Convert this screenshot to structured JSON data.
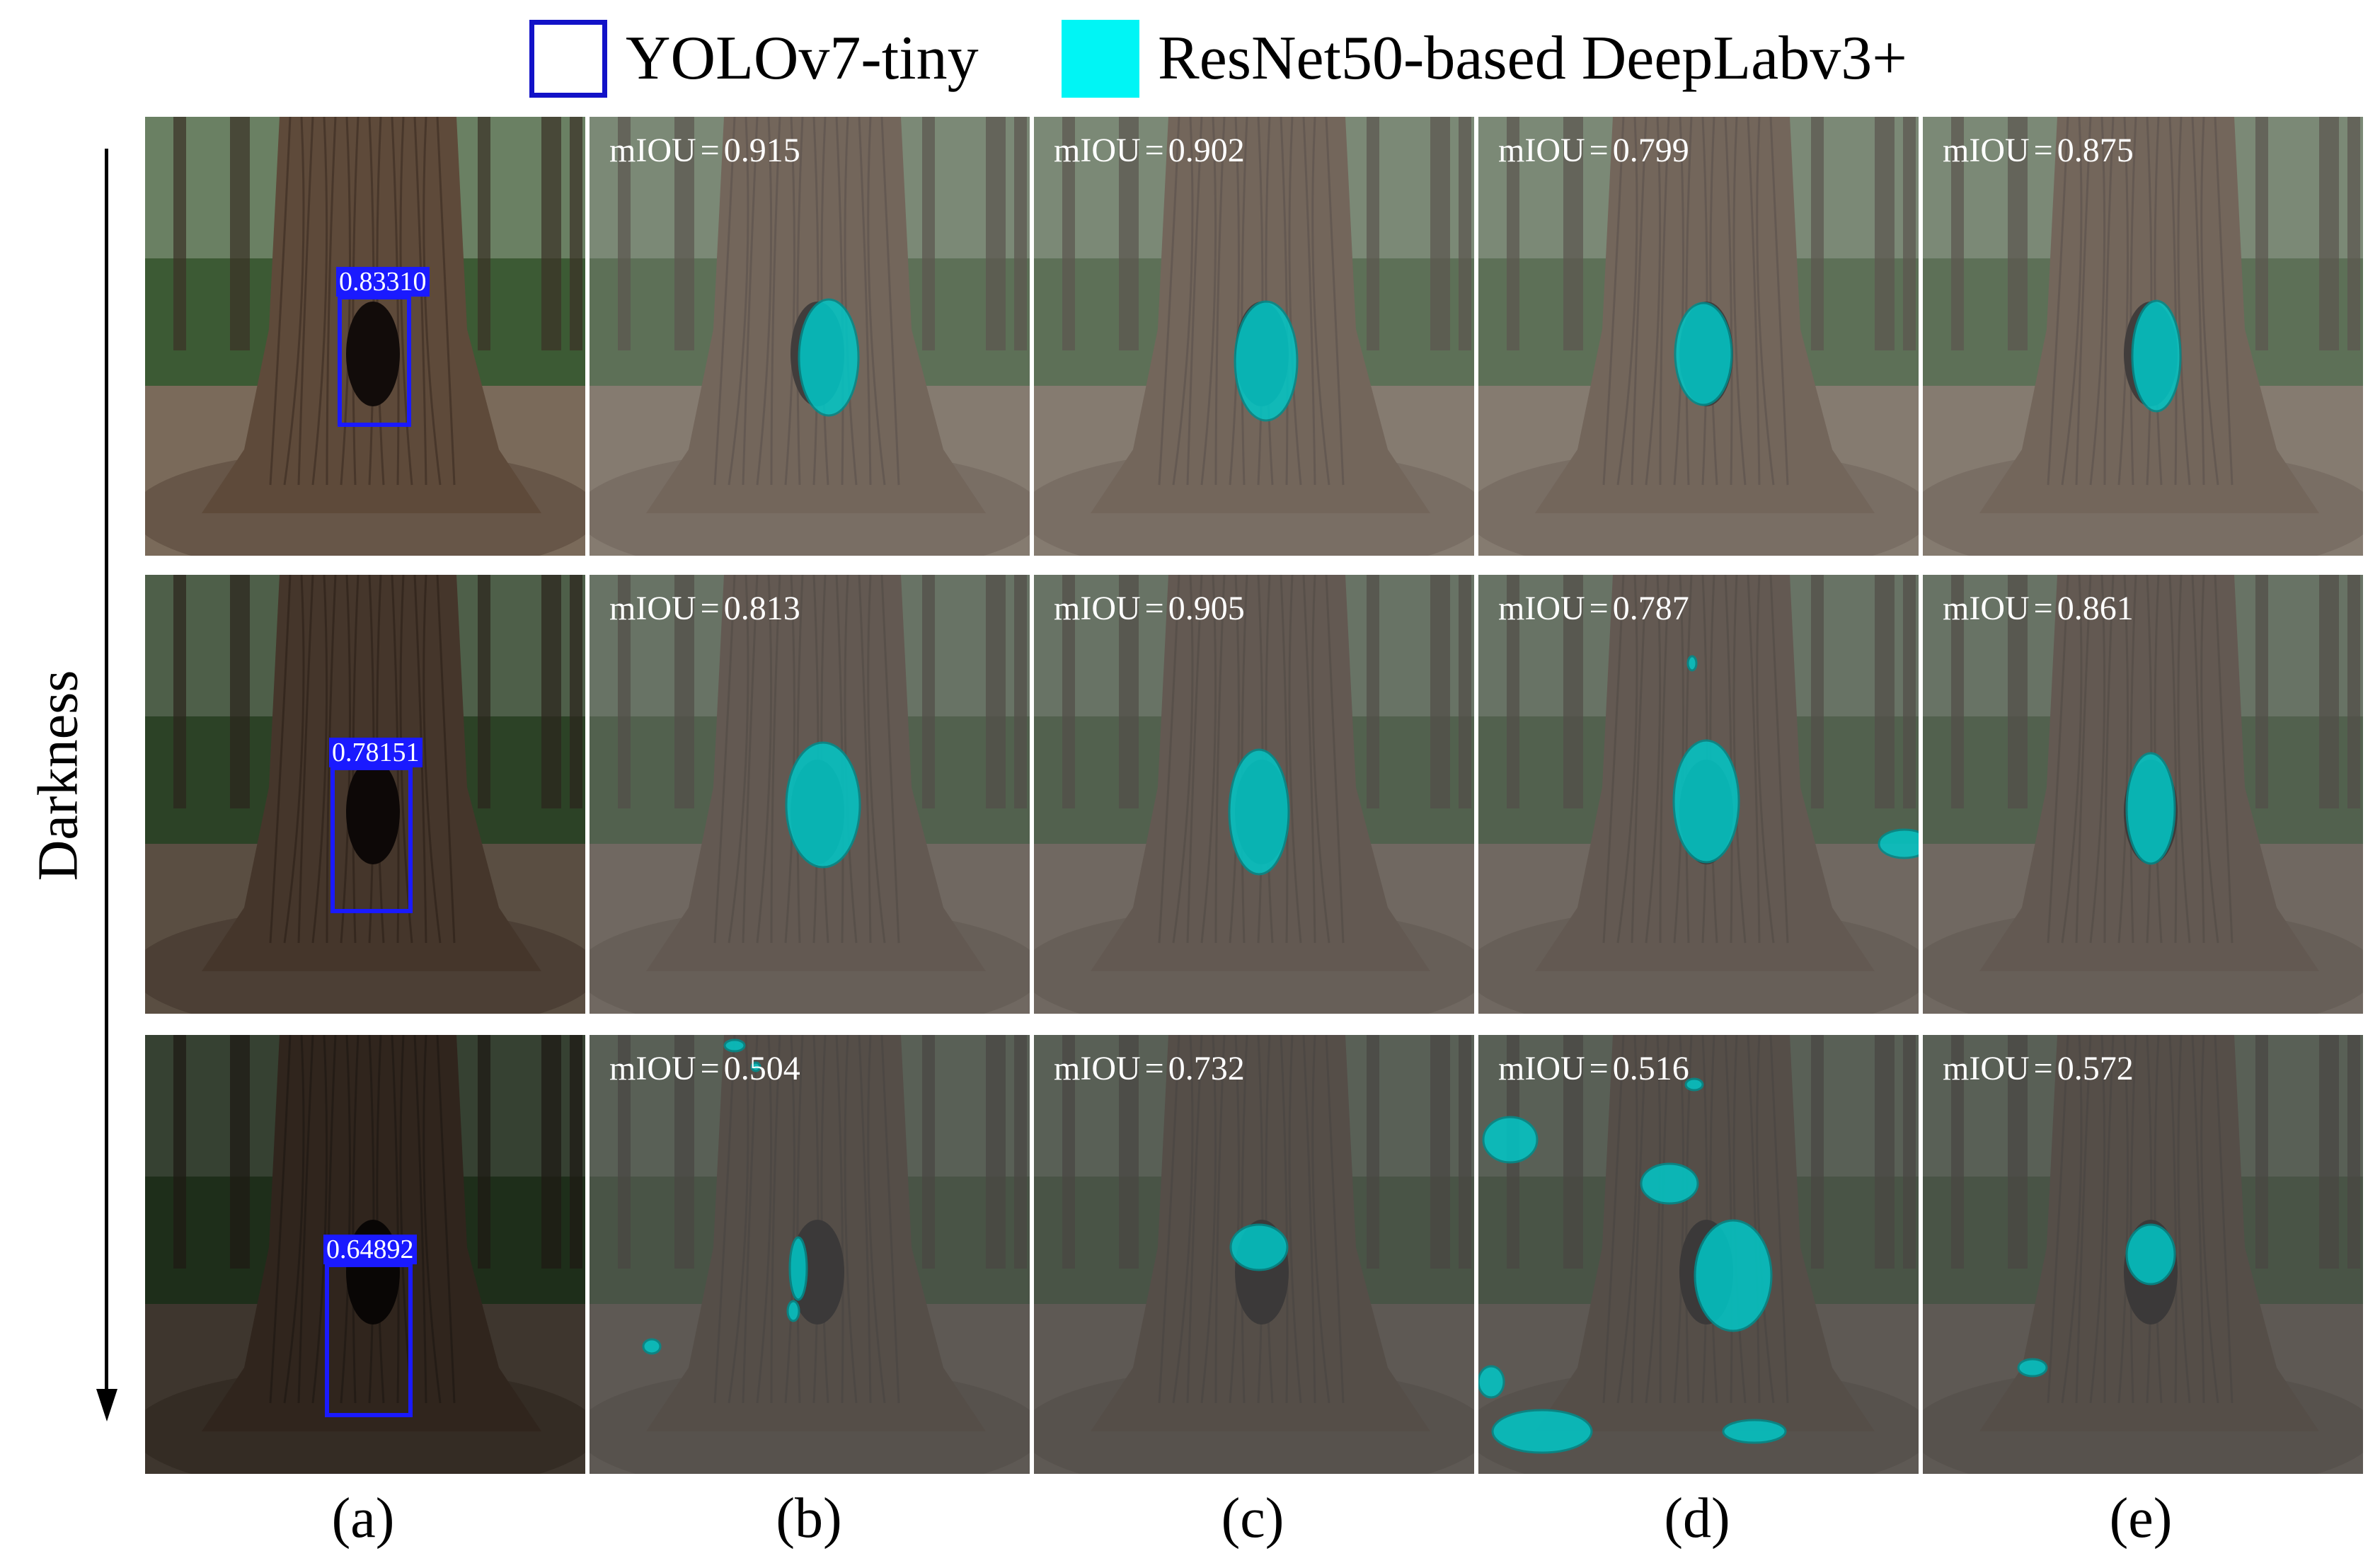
{
  "legend": {
    "items": [
      {
        "label": "YOLOv7-tiny",
        "style": "outline",
        "color": "#1212c8"
      },
      {
        "label": "ResNet50-based DeepLabv3+",
        "style": "fill",
        "color": "#00f5f5"
      }
    ]
  },
  "axis": {
    "label": "Darkness",
    "direction": "down"
  },
  "columns": [
    "(a)",
    "(b)",
    "(c)",
    "(d)",
    "(e)"
  ],
  "metric": {
    "name": "mIOU",
    "symbol": "="
  },
  "rows": [
    {
      "brightness": 1.0,
      "detection_score": "0.83310",
      "miou": [
        "0.915",
        "0.902",
        "0.799",
        "0.875"
      ]
    },
    {
      "brightness": 0.7,
      "detection_score": "0.78151",
      "miou": [
        "0.813",
        "0.905",
        "0.787",
        "0.861"
      ]
    },
    {
      "brightness": 0.42,
      "detection_score": "0.64892",
      "miou": [
        "0.504",
        "0.732",
        "0.516",
        "0.572"
      ]
    }
  ],
  "colors": {
    "mask": "#00c8c8",
    "mask_edge": "#008c8c",
    "detection_box": "#1a1aff",
    "bark": "#5e4a3a",
    "foliage": "#3c5a34",
    "ground": "#7a6a5a"
  }
}
